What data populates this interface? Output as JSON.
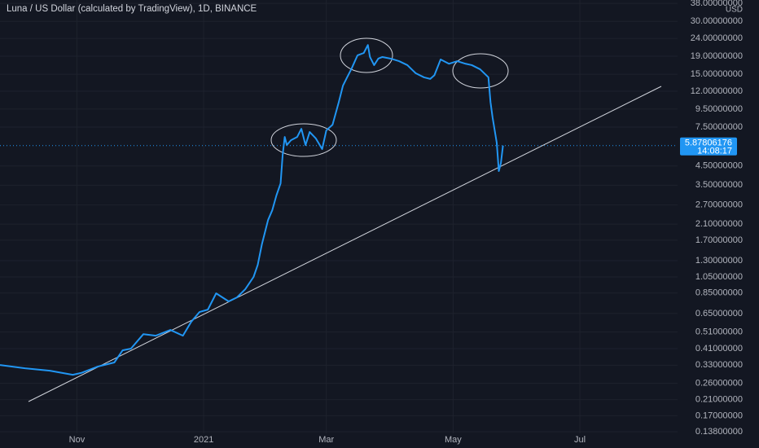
{
  "chart_data": {
    "type": "line",
    "title": "Luna / US Dollar (calculated by TradingView), 1D, BINANCE",
    "y_unit": "USD",
    "log_y": true,
    "grid": true,
    "x": [
      0,
      12,
      24,
      35,
      39,
      47,
      55,
      59,
      63,
      69,
      75,
      82,
      88,
      92,
      96,
      100,
      104,
      110,
      114,
      118,
      122,
      124,
      126,
      129,
      131,
      133,
      135,
      136,
      137,
      138,
      140,
      143,
      145,
      147,
      149,
      152,
      155,
      157,
      160,
      163,
      165,
      167,
      169,
      172,
      175,
      177,
      178,
      180,
      182,
      184,
      188,
      192,
      196,
      200,
      204,
      207,
      209,
      212,
      216,
      220,
      224,
      227,
      231,
      235,
      236,
      237,
      239,
      240,
      241,
      242
    ],
    "series": [
      {
        "color": "#2196f3",
        "values": [
          0.331,
          0.317,
          0.307,
          0.291,
          0.298,
          0.324,
          0.342,
          0.401,
          0.41,
          0.496,
          0.486,
          0.524,
          0.486,
          0.583,
          0.663,
          0.684,
          0.847,
          0.762,
          0.803,
          0.894,
          1.05,
          1.23,
          1.61,
          2.22,
          2.52,
          3.06,
          3.58,
          5.21,
          6.59,
          5.92,
          6.31,
          6.59,
          7.33,
          5.92,
          7.03,
          6.45,
          5.62,
          7.18,
          7.73,
          10.4,
          12.9,
          14.4,
          16.0,
          19.2,
          19.8,
          22.0,
          18.8,
          16.9,
          18.4,
          18.8,
          18.4,
          17.8,
          16.9,
          15.2,
          14.4,
          14.1,
          14.8,
          18.2,
          17.2,
          17.8,
          17.2,
          16.9,
          16.0,
          14.4,
          10.4,
          8.5,
          6.11,
          4.21,
          4.68,
          5.87806176
        ]
      }
    ],
    "last_price": 5.87806176,
    "countdown": "14:08:17",
    "xlim": [
      0,
      326
    ],
    "xticks": [
      {
        "value": 37,
        "label": "Nov"
      },
      {
        "value": 98,
        "label": "2021"
      },
      {
        "value": 157,
        "label": "Mar"
      },
      {
        "value": 218,
        "label": "May"
      },
      {
        "value": 279,
        "label": "Jul"
      }
    ],
    "ylim": [
      0.135,
      39.7
    ],
    "yticks": [
      {
        "value": 38,
        "label": "38.00000000"
      },
      {
        "value": 30,
        "label": "30.00000000"
      },
      {
        "value": 24,
        "label": "24.00000000"
      },
      {
        "value": 19,
        "label": "19.00000000"
      },
      {
        "value": 15,
        "label": "15.00000000"
      },
      {
        "value": 12,
        "label": "12.00000000"
      },
      {
        "value": 9.5,
        "label": "9.50000000"
      },
      {
        "value": 7.5,
        "label": "7.50000000"
      },
      {
        "value": 4.5,
        "label": "4.50000000"
      },
      {
        "value": 3.5,
        "label": "3.50000000"
      },
      {
        "value": 2.7,
        "label": "2.70000000"
      },
      {
        "value": 2.1,
        "label": "2.10000000"
      },
      {
        "value": 1.7,
        "label": "1.70000000"
      },
      {
        "value": 1.3,
        "label": "1.30000000"
      },
      {
        "value": 1.05,
        "label": "1.05000000"
      },
      {
        "value": 0.85,
        "label": "0.85000000"
      },
      {
        "value": 0.65,
        "label": "0.65000000"
      },
      {
        "value": 0.51,
        "label": "0.51000000"
      },
      {
        "value": 0.41,
        "label": "0.41000000"
      },
      {
        "value": 0.33,
        "label": "0.33000000"
      },
      {
        "value": 0.26,
        "label": "0.26000000"
      },
      {
        "value": 0.21,
        "label": "0.21000000"
      },
      {
        "value": 0.17,
        "label": "0.17000000"
      },
      {
        "value": 0.138,
        "label": "0.13800000"
      }
    ]
  }
}
